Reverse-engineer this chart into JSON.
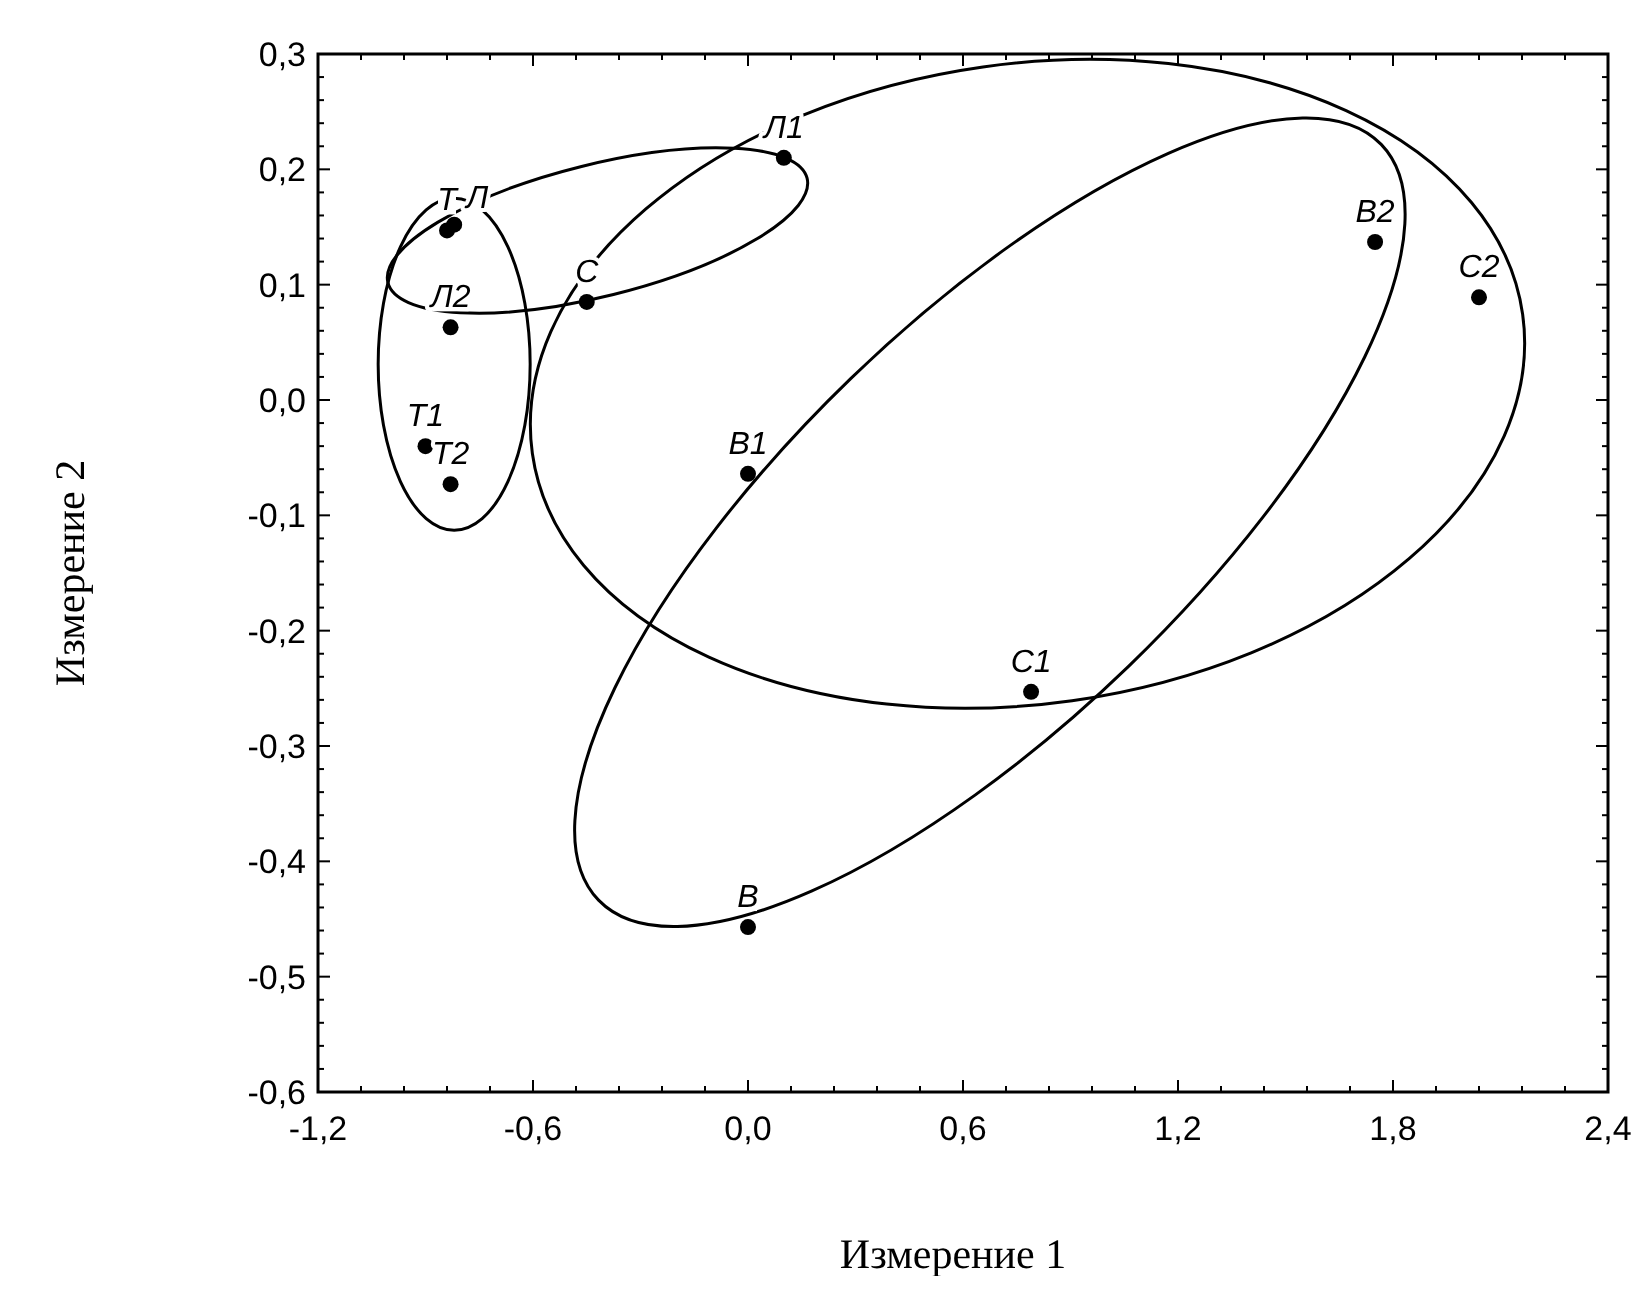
{
  "chart_data": {
    "type": "scatter",
    "xlabel": "Измерение 1",
    "ylabel": "Измерение 2",
    "xlim": [
      -1.2,
      2.4
    ],
    "ylim": [
      -0.6,
      0.3
    ],
    "xticks": [
      {
        "value": -1.2,
        "label": "-1,2"
      },
      {
        "value": -0.6,
        "label": "-0,6"
      },
      {
        "value": 0,
        "label": "0,0"
      },
      {
        "value": 0.6,
        "label": "0,6"
      },
      {
        "value": 1.2,
        "label": "1,2"
      },
      {
        "value": 1.8,
        "label": "1,8"
      },
      {
        "value": 2.4,
        "label": "2,4"
      }
    ],
    "yticks": [
      {
        "value": -0.6,
        "label": "-0,6"
      },
      {
        "value": -0.5,
        "label": "-0,5"
      },
      {
        "value": -0.4,
        "label": "-0,4"
      },
      {
        "value": -0.3,
        "label": "-0,3"
      },
      {
        "value": -0.2,
        "label": "-0,2"
      },
      {
        "value": -0.1,
        "label": "-0,1"
      },
      {
        "value": 0,
        "label": "0,0"
      },
      {
        "value": 0.1,
        "label": "0,1"
      },
      {
        "value": 0.2,
        "label": "0,2"
      },
      {
        "value": 0.3,
        "label": "0,3"
      }
    ],
    "grid": false,
    "marker": "circle",
    "series": [
      {
        "color": "#000000",
        "x": [
          -0.84,
          -0.82,
          -0.83,
          -0.45,
          0.1,
          -0.9,
          -0.83,
          0.0,
          1.75,
          2.04,
          0.79,
          0.0
        ],
        "values": [
          0.147,
          0.152,
          0.063,
          0.085,
          0.21,
          -0.04,
          -0.073,
          -0.064,
          0.137,
          0.089,
          -0.253,
          -0.457
        ]
      }
    ],
    "annotations": [
      {
        "text": "Т",
        "x": -0.84,
        "y": 0.147
      },
      {
        "text": "Л",
        "x": -0.82,
        "y": 0.152
      },
      {
        "text": "Л2",
        "x": -0.83,
        "y": 0.063
      },
      {
        "text": "С",
        "x": -0.45,
        "y": 0.085
      },
      {
        "text": "Л1",
        "x": 0.1,
        "y": 0.21
      },
      {
        "text": "Т1",
        "x": -0.9,
        "y": -0.04
      },
      {
        "text": "Т2",
        "x": -0.83,
        "y": -0.073
      },
      {
        "text": "В1",
        "x": 0.0,
        "y": -0.064
      },
      {
        "text": "В2",
        "x": 1.75,
        "y": 0.137
      },
      {
        "text": "С2",
        "x": 2.04,
        "y": 0.089
      },
      {
        "text": "С1",
        "x": 0.79,
        "y": -0.253
      },
      {
        "text": "В",
        "x": 0.0,
        "y": -0.457
      }
    ]
  }
}
